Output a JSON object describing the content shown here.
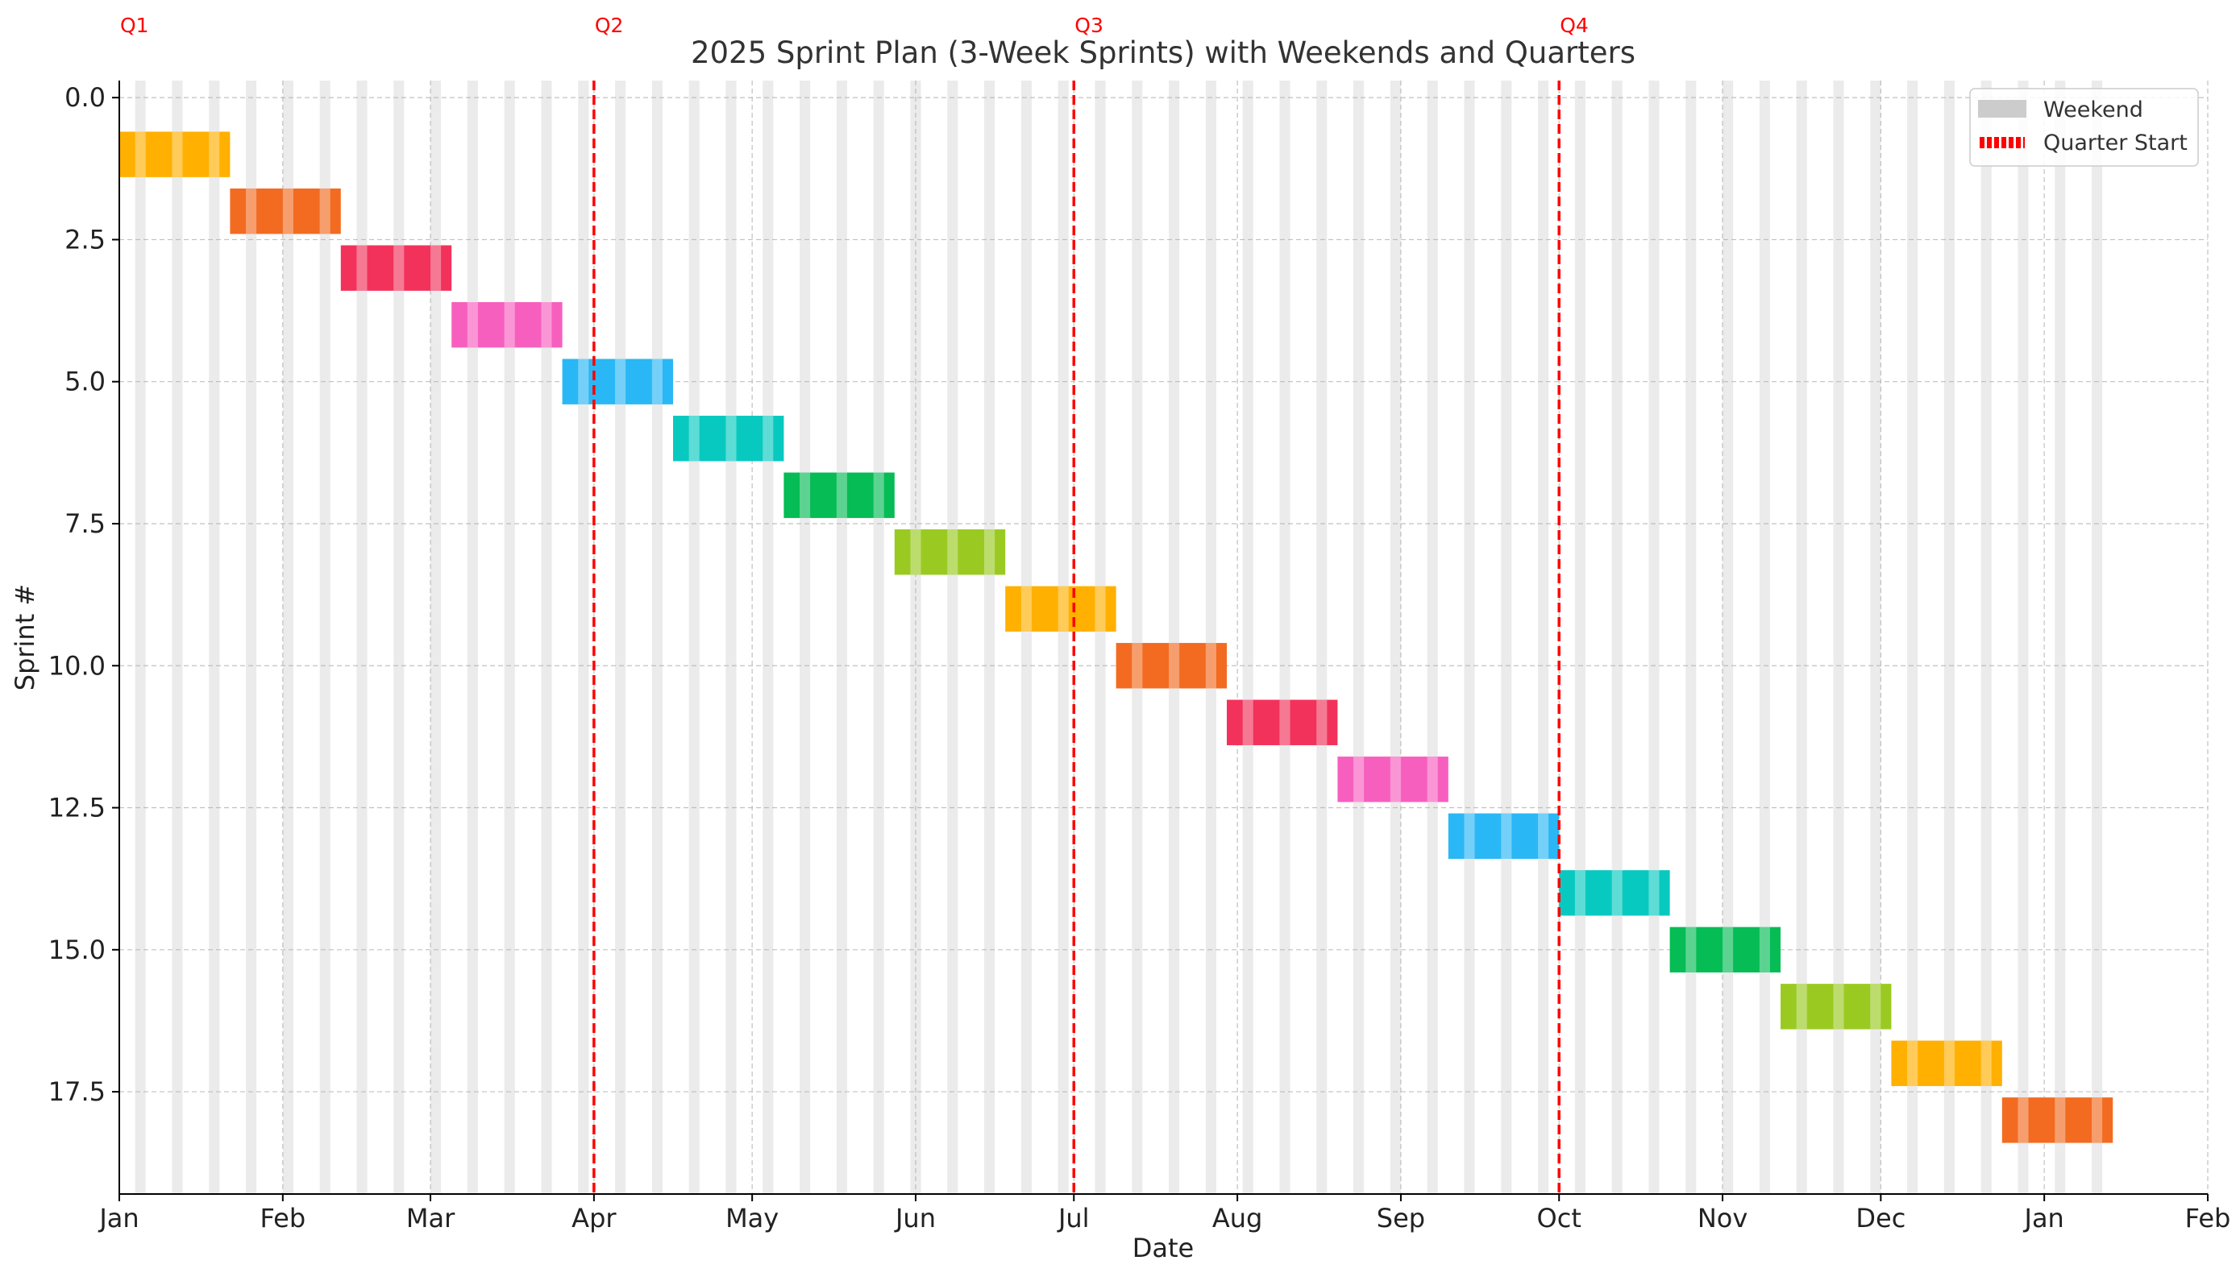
{
  "chart_data": {
    "type": "gantt",
    "title": "2025 Sprint Plan (3-Week Sprints) with Weekends and Quarters",
    "xlabel": "Date",
    "ylabel": "Sprint #",
    "xlim": [
      "2025-01-01",
      "2026-02-01"
    ],
    "ylim": [
      19.3,
      -0.3
    ],
    "grid": true,
    "legend_position": "top-right",
    "x_ticks": [
      {
        "date": "2025-01-01",
        "label": "Jan"
      },
      {
        "date": "2025-02-01",
        "label": "Feb"
      },
      {
        "date": "2025-03-01",
        "label": "Mar"
      },
      {
        "date": "2025-04-01",
        "label": "Apr"
      },
      {
        "date": "2025-05-01",
        "label": "May"
      },
      {
        "date": "2025-06-01",
        "label": "Jun"
      },
      {
        "date": "2025-07-01",
        "label": "Jul"
      },
      {
        "date": "2025-08-01",
        "label": "Aug"
      },
      {
        "date": "2025-09-01",
        "label": "Sep"
      },
      {
        "date": "2025-10-01",
        "label": "Oct"
      },
      {
        "date": "2025-11-01",
        "label": "Nov"
      },
      {
        "date": "2025-12-01",
        "label": "Dec"
      },
      {
        "date": "2026-01-01",
        "label": "Jan"
      },
      {
        "date": "2026-02-01",
        "label": "Feb"
      }
    ],
    "y_ticks": [
      {
        "value": 0,
        "label": "0.0"
      },
      {
        "value": 2.5,
        "label": "2.5"
      },
      {
        "value": 5,
        "label": "5.0"
      },
      {
        "value": 7.5,
        "label": "7.5"
      },
      {
        "value": 10,
        "label": "10.0"
      },
      {
        "value": 12.5,
        "label": "12.5"
      },
      {
        "value": 15,
        "label": "15.0"
      },
      {
        "value": 17.5,
        "label": "17.5"
      }
    ],
    "sprint_length_days": 21,
    "sprints": [
      {
        "sprint": 1,
        "start": "2025-01-01",
        "color": "#FFB000"
      },
      {
        "sprint": 2,
        "start": "2025-01-22",
        "color": "#F26B21"
      },
      {
        "sprint": 3,
        "start": "2025-02-12",
        "color": "#F2325B"
      },
      {
        "sprint": 4,
        "start": "2025-03-05",
        "color": "#F75FBF"
      },
      {
        "sprint": 5,
        "start": "2025-03-26",
        "color": "#2AB7F5"
      },
      {
        "sprint": 6,
        "start": "2025-04-16",
        "color": "#08C9C0"
      },
      {
        "sprint": 7,
        "start": "2025-05-07",
        "color": "#05BC55"
      },
      {
        "sprint": 8,
        "start": "2025-05-28",
        "color": "#9ACA21"
      },
      {
        "sprint": 9,
        "start": "2025-06-18",
        "color": "#FFB000"
      },
      {
        "sprint": 10,
        "start": "2025-07-09",
        "color": "#F26B21"
      },
      {
        "sprint": 11,
        "start": "2025-07-30",
        "color": "#F2325B"
      },
      {
        "sprint": 12,
        "start": "2025-08-20",
        "color": "#F75FBF"
      },
      {
        "sprint": 13,
        "start": "2025-09-10",
        "color": "#2AB7F5"
      },
      {
        "sprint": 14,
        "start": "2025-10-01",
        "color": "#08C9C0"
      },
      {
        "sprint": 15,
        "start": "2025-10-22",
        "color": "#05BC55"
      },
      {
        "sprint": 16,
        "start": "2025-11-12",
        "color": "#9ACA21"
      },
      {
        "sprint": 17,
        "start": "2025-12-03",
        "color": "#FFB000"
      },
      {
        "sprint": 18,
        "start": "2025-12-24",
        "color": "#F26B21"
      }
    ],
    "quarters": [
      {
        "label": "Q1",
        "date": "2025-01-01",
        "line": false
      },
      {
        "label": "Q2",
        "date": "2025-04-01",
        "line": true
      },
      {
        "label": "Q3",
        "date": "2025-07-01",
        "line": true
      },
      {
        "label": "Q4",
        "date": "2025-10-01",
        "line": true
      }
    ],
    "weekend_shading_range": [
      "2025-01-01",
      "2026-01-14"
    ],
    "legend": [
      {
        "label": "Weekend",
        "kind": "patch",
        "color": "#cccccc"
      },
      {
        "label": "Quarter Start",
        "kind": "dashed-line",
        "color": "#ff0000"
      }
    ],
    "colors": {
      "weekend": "#d3d3d3",
      "quarter": "#ff0000",
      "grid": "#b0b0b0"
    }
  }
}
